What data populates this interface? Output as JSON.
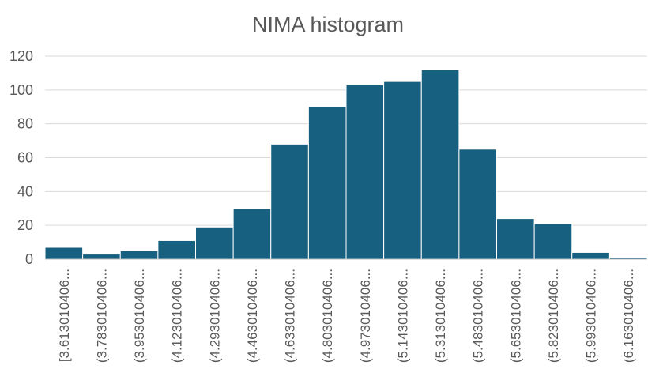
{
  "chart_data": {
    "type": "bar",
    "title": "NIMA histogram",
    "xlabel": "",
    "ylabel": "",
    "ylim": [
      0,
      120
    ],
    "yticks": [
      0,
      20,
      40,
      60,
      80,
      100,
      120
    ],
    "grid": true,
    "legend": "none",
    "bar_color": "#17607f",
    "categories": [
      "[3.613010406...",
      "(3.783010406...",
      "(3.953010406...",
      "(4.123010406...",
      "(4.293010406...",
      "(4.463010406...",
      "(4.633010406...",
      "(4.803010406...",
      "(4.973010406...",
      "(5.143010406...",
      "(5.313010406...",
      "(5.483010406...",
      "(5.653010406...",
      "(5.823010406...",
      "(5.993010406...",
      "(6.163010406..."
    ],
    "values": [
      7,
      3,
      5,
      11,
      19,
      30,
      68,
      90,
      103,
      105,
      112,
      65,
      24,
      21,
      4,
      1
    ]
  }
}
